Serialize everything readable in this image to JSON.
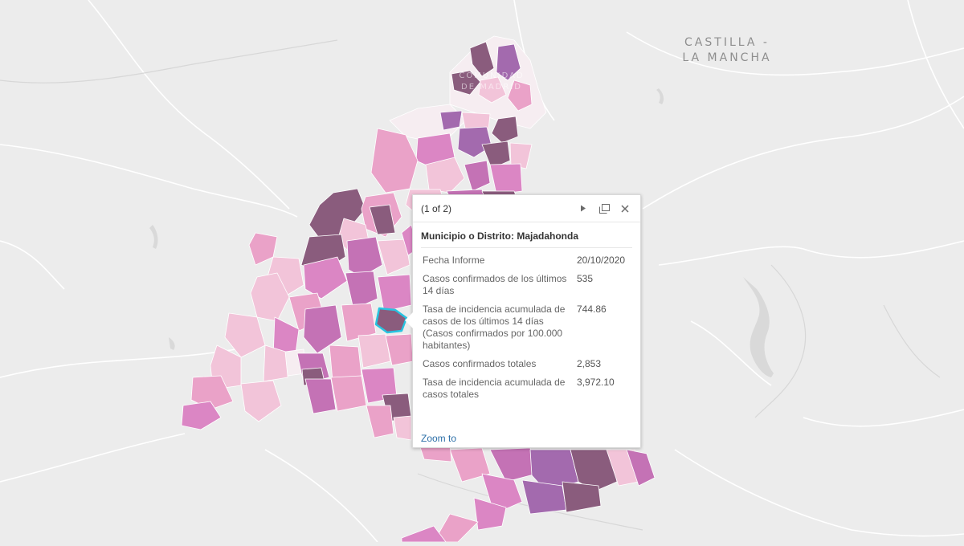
{
  "map": {
    "region_label_line1": "CASTILLA -",
    "region_label_line2": "LA MANCHA",
    "watermark_line1": "COMUNIDAD",
    "watermark_line2": "DE MADRID",
    "colors": {
      "background": "#ececec",
      "road": "#ffffff",
      "very_low": "#f6edf1",
      "low": "#f2c4d9",
      "medium_low": "#eaa2c8",
      "medium": "#db86c4",
      "medium_high": "#c472b5",
      "high": "#a36aae",
      "very_high": "#8a5c7d",
      "selected_outline": "#27c3e0"
    }
  },
  "popup": {
    "feature_count": "(1 of 2)",
    "next_icon": "play-icon",
    "dock_icon": "dock-icon",
    "close_icon": "close-icon",
    "title": "Municipio o Distrito: Majadahonda",
    "fields": [
      {
        "label": "Fecha Informe",
        "value": "20/10/2020"
      },
      {
        "label": "Casos confirmados de los últimos 14 días",
        "value": "535"
      },
      {
        "label": "Tasa de incidencia acumulada de casos de los últimos 14 días (Casos confirmados por 100.000 habitantes)",
        "value": "744.86"
      },
      {
        "label": "Casos confirmados totales",
        "value": "2,853"
      },
      {
        "label": "Tasa de incidencia acumulada de casos totales",
        "value": "3,972.10"
      }
    ],
    "zoom_to": "Zoom to"
  }
}
